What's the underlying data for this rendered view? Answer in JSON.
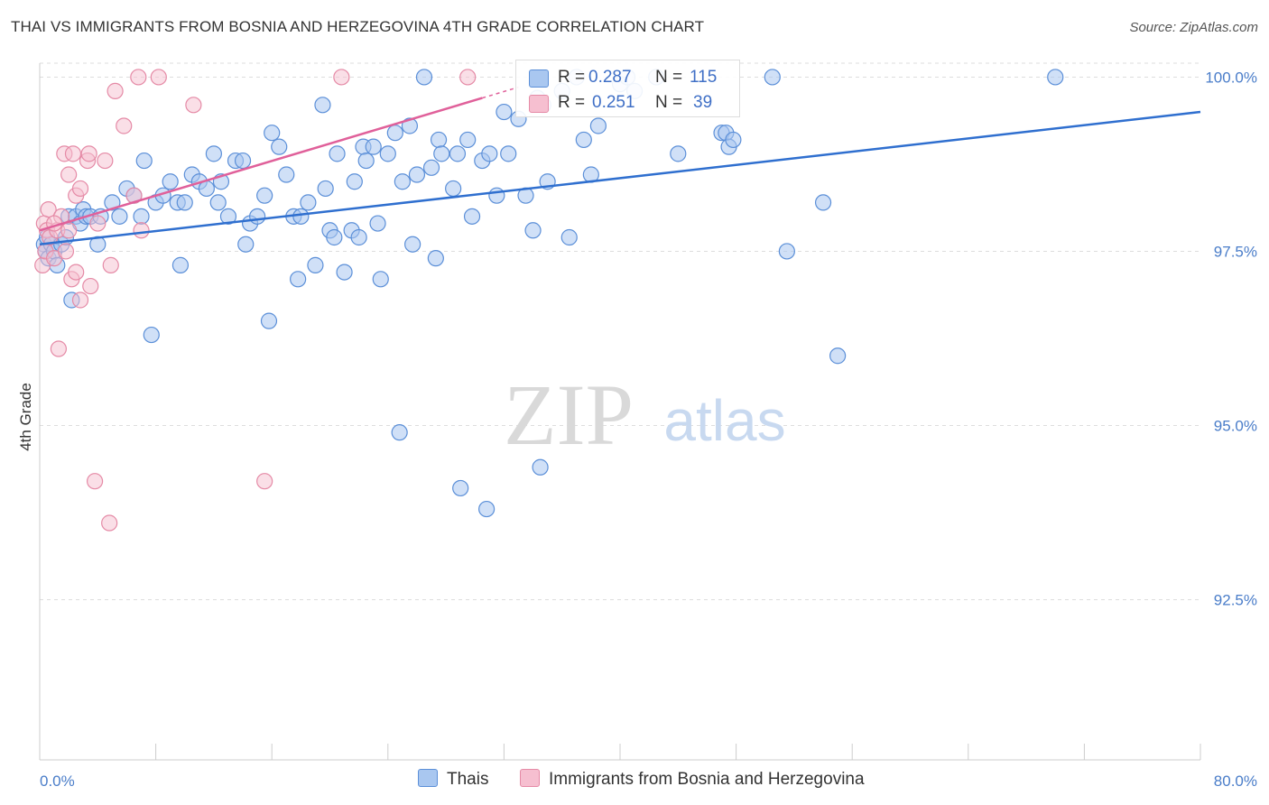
{
  "title": "THAI VS IMMIGRANTS FROM BOSNIA AND HERZEGOVINA 4TH GRADE CORRELATION CHART",
  "source": "Source: ZipAtlas.com",
  "watermark": {
    "zip": "ZIP",
    "atlas": "atlas"
  },
  "colors": {
    "blue_fill": "#a9c7f0",
    "blue_stroke": "#5b8fd8",
    "blue_line": "#2f6fcf",
    "pink_fill": "#f6bfd0",
    "pink_stroke": "#e58aa6",
    "pink_line": "#e0609a",
    "tick_text": "#4a7dc9",
    "grid": "#dddddd"
  },
  "legend": {
    "rows": [
      {
        "r_label": "R =",
        "r_value": "0.287",
        "n_label": "N =",
        "n_value": "115",
        "series": "Thais"
      },
      {
        "r_label": "R =",
        "r_value": "0.251",
        "n_label": "N =",
        "n_value": "39",
        "series": "Immigrants from Bosnia and Herzegovina"
      }
    ]
  },
  "chart_data": {
    "type": "scatter",
    "title": "THAI VS IMMIGRANTS FROM BOSNIA AND HERZEGOVINA 4TH GRADE CORRELATION CHART",
    "xlabel": "",
    "ylabel": "4th Grade",
    "xlim": [
      0,
      80
    ],
    "ylim": [
      90.2,
      100.2
    ],
    "x_tick_labels": [
      "0.0%",
      "80.0%"
    ],
    "y_ticks": [
      92.5,
      95.0,
      97.5,
      100.0
    ],
    "y_tick_labels": [
      "92.5%",
      "95.0%",
      "97.5%",
      "100.0%"
    ],
    "grid": "horizontal dashed",
    "legend_position": "top-center",
    "series": [
      {
        "name": "Thais",
        "color": "#a9c7f0",
        "trend": {
          "x": [
            0,
            80
          ],
          "y": [
            97.6,
            99.5
          ]
        },
        "points": [
          [
            0.3,
            97.6
          ],
          [
            0.4,
            97.5
          ],
          [
            0.5,
            97.7
          ],
          [
            0.6,
            97.4
          ],
          [
            0.8,
            97.6
          ],
          [
            1.0,
            97.5
          ],
          [
            1.2,
            97.3
          ],
          [
            1.5,
            97.6
          ],
          [
            1.8,
            97.7
          ],
          [
            2.0,
            98.0
          ],
          [
            2.2,
            96.8
          ],
          [
            2.5,
            98.0
          ],
          [
            2.8,
            97.9
          ],
          [
            3.0,
            98.1
          ],
          [
            3.2,
            98.0
          ],
          [
            3.5,
            98.0
          ],
          [
            4.0,
            97.6
          ],
          [
            4.2,
            98.0
          ],
          [
            5.0,
            98.2
          ],
          [
            5.5,
            98.0
          ],
          [
            6.0,
            98.4
          ],
          [
            6.5,
            98.3
          ],
          [
            7.0,
            98.0
          ],
          [
            7.2,
            98.8
          ],
          [
            7.7,
            96.3
          ],
          [
            8.0,
            98.2
          ],
          [
            8.5,
            98.3
          ],
          [
            9.0,
            98.5
          ],
          [
            9.5,
            98.2
          ],
          [
            9.7,
            97.3
          ],
          [
            10.0,
            98.2
          ],
          [
            10.5,
            98.6
          ],
          [
            11.0,
            98.5
          ],
          [
            11.5,
            98.4
          ],
          [
            12.0,
            98.9
          ],
          [
            12.3,
            98.2
          ],
          [
            12.5,
            98.5
          ],
          [
            13.0,
            98.0
          ],
          [
            13.5,
            98.8
          ],
          [
            14.0,
            98.8
          ],
          [
            14.2,
            97.6
          ],
          [
            14.5,
            97.9
          ],
          [
            15.0,
            98.0
          ],
          [
            15.5,
            98.3
          ],
          [
            15.8,
            96.5
          ],
          [
            16.0,
            99.2
          ],
          [
            16.5,
            99.0
          ],
          [
            17.0,
            98.6
          ],
          [
            17.5,
            98.0
          ],
          [
            17.8,
            97.1
          ],
          [
            18.0,
            98.0
          ],
          [
            18.5,
            98.2
          ],
          [
            19.0,
            97.3
          ],
          [
            19.5,
            99.6
          ],
          [
            19.7,
            98.4
          ],
          [
            20.0,
            97.8
          ],
          [
            20.3,
            97.7
          ],
          [
            20.5,
            98.9
          ],
          [
            21.0,
            97.2
          ],
          [
            21.5,
            97.8
          ],
          [
            21.7,
            98.5
          ],
          [
            22.0,
            97.7
          ],
          [
            22.3,
            99.0
          ],
          [
            22.5,
            98.8
          ],
          [
            23.0,
            99.0
          ],
          [
            23.3,
            97.9
          ],
          [
            23.5,
            97.1
          ],
          [
            24.0,
            98.9
          ],
          [
            24.5,
            99.2
          ],
          [
            24.8,
            94.9
          ],
          [
            25.0,
            98.5
          ],
          [
            25.5,
            99.3
          ],
          [
            25.7,
            97.6
          ],
          [
            26.0,
            98.6
          ],
          [
            26.5,
            100.0
          ],
          [
            27.0,
            98.7
          ],
          [
            27.3,
            97.4
          ],
          [
            27.5,
            99.1
          ],
          [
            27.7,
            98.9
          ],
          [
            28.5,
            98.4
          ],
          [
            28.8,
            98.9
          ],
          [
            29.0,
            94.1
          ],
          [
            29.5,
            99.1
          ],
          [
            29.8,
            98.0
          ],
          [
            30.5,
            98.8
          ],
          [
            30.8,
            93.8
          ],
          [
            31.0,
            98.9
          ],
          [
            31.5,
            98.3
          ],
          [
            32.0,
            99.5
          ],
          [
            32.3,
            98.9
          ],
          [
            33.0,
            99.4
          ],
          [
            33.5,
            98.3
          ],
          [
            34.0,
            97.8
          ],
          [
            34.3,
            99.7
          ],
          [
            34.5,
            94.4
          ],
          [
            34.7,
            99.6
          ],
          [
            35.0,
            98.5
          ],
          [
            36.0,
            99.8
          ],
          [
            36.5,
            97.7
          ],
          [
            37.0,
            100.0
          ],
          [
            37.5,
            99.1
          ],
          [
            38.0,
            98.6
          ],
          [
            38.5,
            99.3
          ],
          [
            40.0,
            99.9
          ],
          [
            40.5,
            100.0
          ],
          [
            41.0,
            99.8
          ],
          [
            42.5,
            100.0
          ],
          [
            44.0,
            98.9
          ],
          [
            47.0,
            99.2
          ],
          [
            47.3,
            99.2
          ],
          [
            47.5,
            99.0
          ],
          [
            47.8,
            99.1
          ],
          [
            50.5,
            100.0
          ],
          [
            51.5,
            97.5
          ],
          [
            54.0,
            98.2
          ],
          [
            55.0,
            96.0
          ],
          [
            70.0,
            100.0
          ]
        ]
      },
      {
        "name": "Immigrants from Bosnia and Herzegovina",
        "color": "#f6bfd0",
        "trend": {
          "x": [
            0,
            30.5
          ],
          "y": [
            97.8,
            99.7
          ]
        },
        "points": [
          [
            0.2,
            97.3
          ],
          [
            0.3,
            97.9
          ],
          [
            0.4,
            97.5
          ],
          [
            0.5,
            97.8
          ],
          [
            0.6,
            98.1
          ],
          [
            0.7,
            97.7
          ],
          [
            1.0,
            97.4
          ],
          [
            1.2,
            97.8
          ],
          [
            1.3,
            96.1
          ],
          [
            1.5,
            98.0
          ],
          [
            1.7,
            98.9
          ],
          [
            1.8,
            97.5
          ],
          [
            2.0,
            98.6
          ],
          [
            2.2,
            97.1
          ],
          [
            2.3,
            98.9
          ],
          [
            2.5,
            97.2
          ],
          [
            2.5,
            98.3
          ],
          [
            2.8,
            98.4
          ],
          [
            2.8,
            96.8
          ],
          [
            3.3,
            98.8
          ],
          [
            3.4,
            98.9
          ],
          [
            3.5,
            97.0
          ],
          [
            3.8,
            94.2
          ],
          [
            4.0,
            97.9
          ],
          [
            4.5,
            98.8
          ],
          [
            4.8,
            93.6
          ],
          [
            4.9,
            97.3
          ],
          [
            5.2,
            99.8
          ],
          [
            5.8,
            99.3
          ],
          [
            6.5,
            98.3
          ],
          [
            6.8,
            100.0
          ],
          [
            7.0,
            97.8
          ],
          [
            8.2,
            100.0
          ],
          [
            10.6,
            99.6
          ],
          [
            15.5,
            94.2
          ],
          [
            20.8,
            100.0
          ],
          [
            29.5,
            100.0
          ],
          [
            2.0,
            97.8
          ],
          [
            1.0,
            97.9
          ]
        ]
      }
    ]
  },
  "bottom_legend": {
    "thais": "Thais",
    "bosnia": "Immigrants from Bosnia and Herzegovina"
  }
}
